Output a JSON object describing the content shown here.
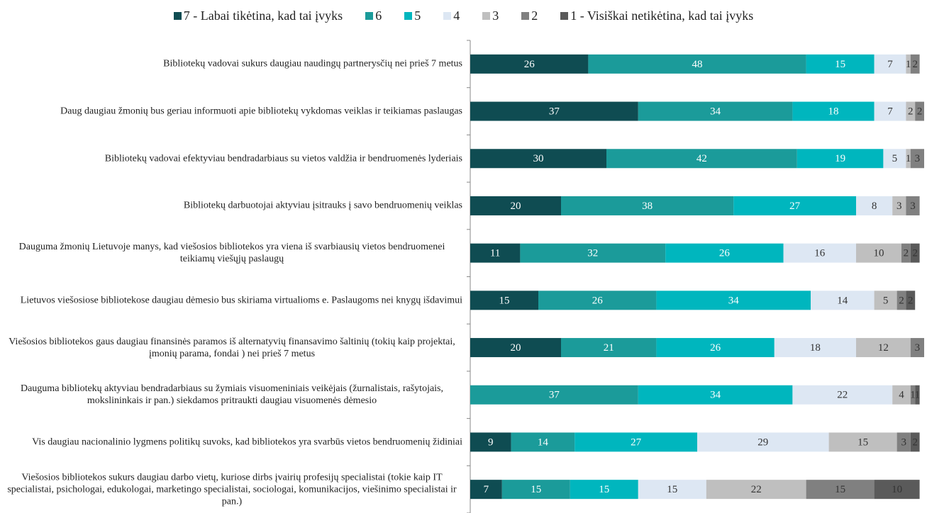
{
  "chart_data": {
    "type": "stacked-bar-horizontal",
    "categories": [
      "Bibliotekų vadovai sukurs daugiau naudingų partnerysčių nei prieš 7 metus",
      "Daug daugiau žmonių bus geriau informuoti apie bibliotekų vykdomas veiklas ir teikiamas paslaugas",
      "Bibliotekų vadovai efektyviau bendradarbiaus su vietos valdžia ir bendruomenės lyderiais",
      "Bibliotekų darbuotojai aktyviau įsitrauks į savo bendruomenių veiklas",
      "Dauguma žmonių Lietuvoje manys, kad viešosios bibliotekos yra viena iš svarbiausių vietos bendruomenei teikiamų viešųjų paslaugų",
      "Lietuvos viešosiose bibliotekose daugiau dėmesio bus skiriama virtualioms e. Paslaugoms nei knygų išdavimui",
      "Viešosios bibliotekos gaus daugiau finansinės paramos iš alternatyvių finansavimo šaltinių (tokių kaip projektai, įmonių parama, fondai ) nei prieš 7 metus",
      "Dauguma bibliotekų aktyviau bendradarbiaus su žymiais visuomeniniais veikėjais (žurnalistais, rašytojais, mokslininkais ir pan.) siekdamos pritraukti daugiau visuomenės dėmesio",
      "Vis daugiau nacionalinio lygmens politikų suvoks, kad bibliotekos yra svarbūs vietos bendruomenių židiniai",
      "Viešosios bibliotekos sukurs daugiau darbo vietų, kuriose dirbs įvairių profesijų specialistai (tokie kaip IT specialistai, psichologai, edukologai, marketingo specialistai, sociologai, komunikacijos, viešinimo specialistai ir pan.)"
    ],
    "series": [
      {
        "name": "7 - Labai tikėtina, kad tai įvyks",
        "color": "#0f4c52",
        "values": [
          26,
          37,
          30,
          20,
          11,
          15,
          20,
          null,
          9,
          7
        ]
      },
      {
        "name": "6",
        "color": "#1b9b9a",
        "values": [
          48,
          34,
          42,
          38,
          32,
          26,
          21,
          37,
          14,
          15
        ]
      },
      {
        "name": "5",
        "color": "#00b6be",
        "values": [
          15,
          18,
          19,
          27,
          26,
          34,
          26,
          34,
          27,
          15
        ]
      },
      {
        "name": "4",
        "color": "#dde7f3",
        "values": [
          7,
          7,
          5,
          8,
          16,
          14,
          18,
          22,
          29,
          15
        ]
      },
      {
        "name": "3",
        "color": "#bfbfbf",
        "values": [
          1,
          2,
          1,
          3,
          10,
          5,
          12,
          4,
          15,
          22
        ]
      },
      {
        "name": "2",
        "color": "#808080",
        "values": [
          2,
          2,
          3,
          3,
          2,
          2,
          3,
          1,
          3,
          15
        ]
      },
      {
        "name": "1 - Visiškai netikėtina, kad tai įvyks",
        "color": "#5a5a5a",
        "values": [
          null,
          null,
          null,
          null,
          2,
          2,
          null,
          1,
          2,
          10
        ]
      }
    ],
    "xlim": [
      0,
      100
    ]
  }
}
